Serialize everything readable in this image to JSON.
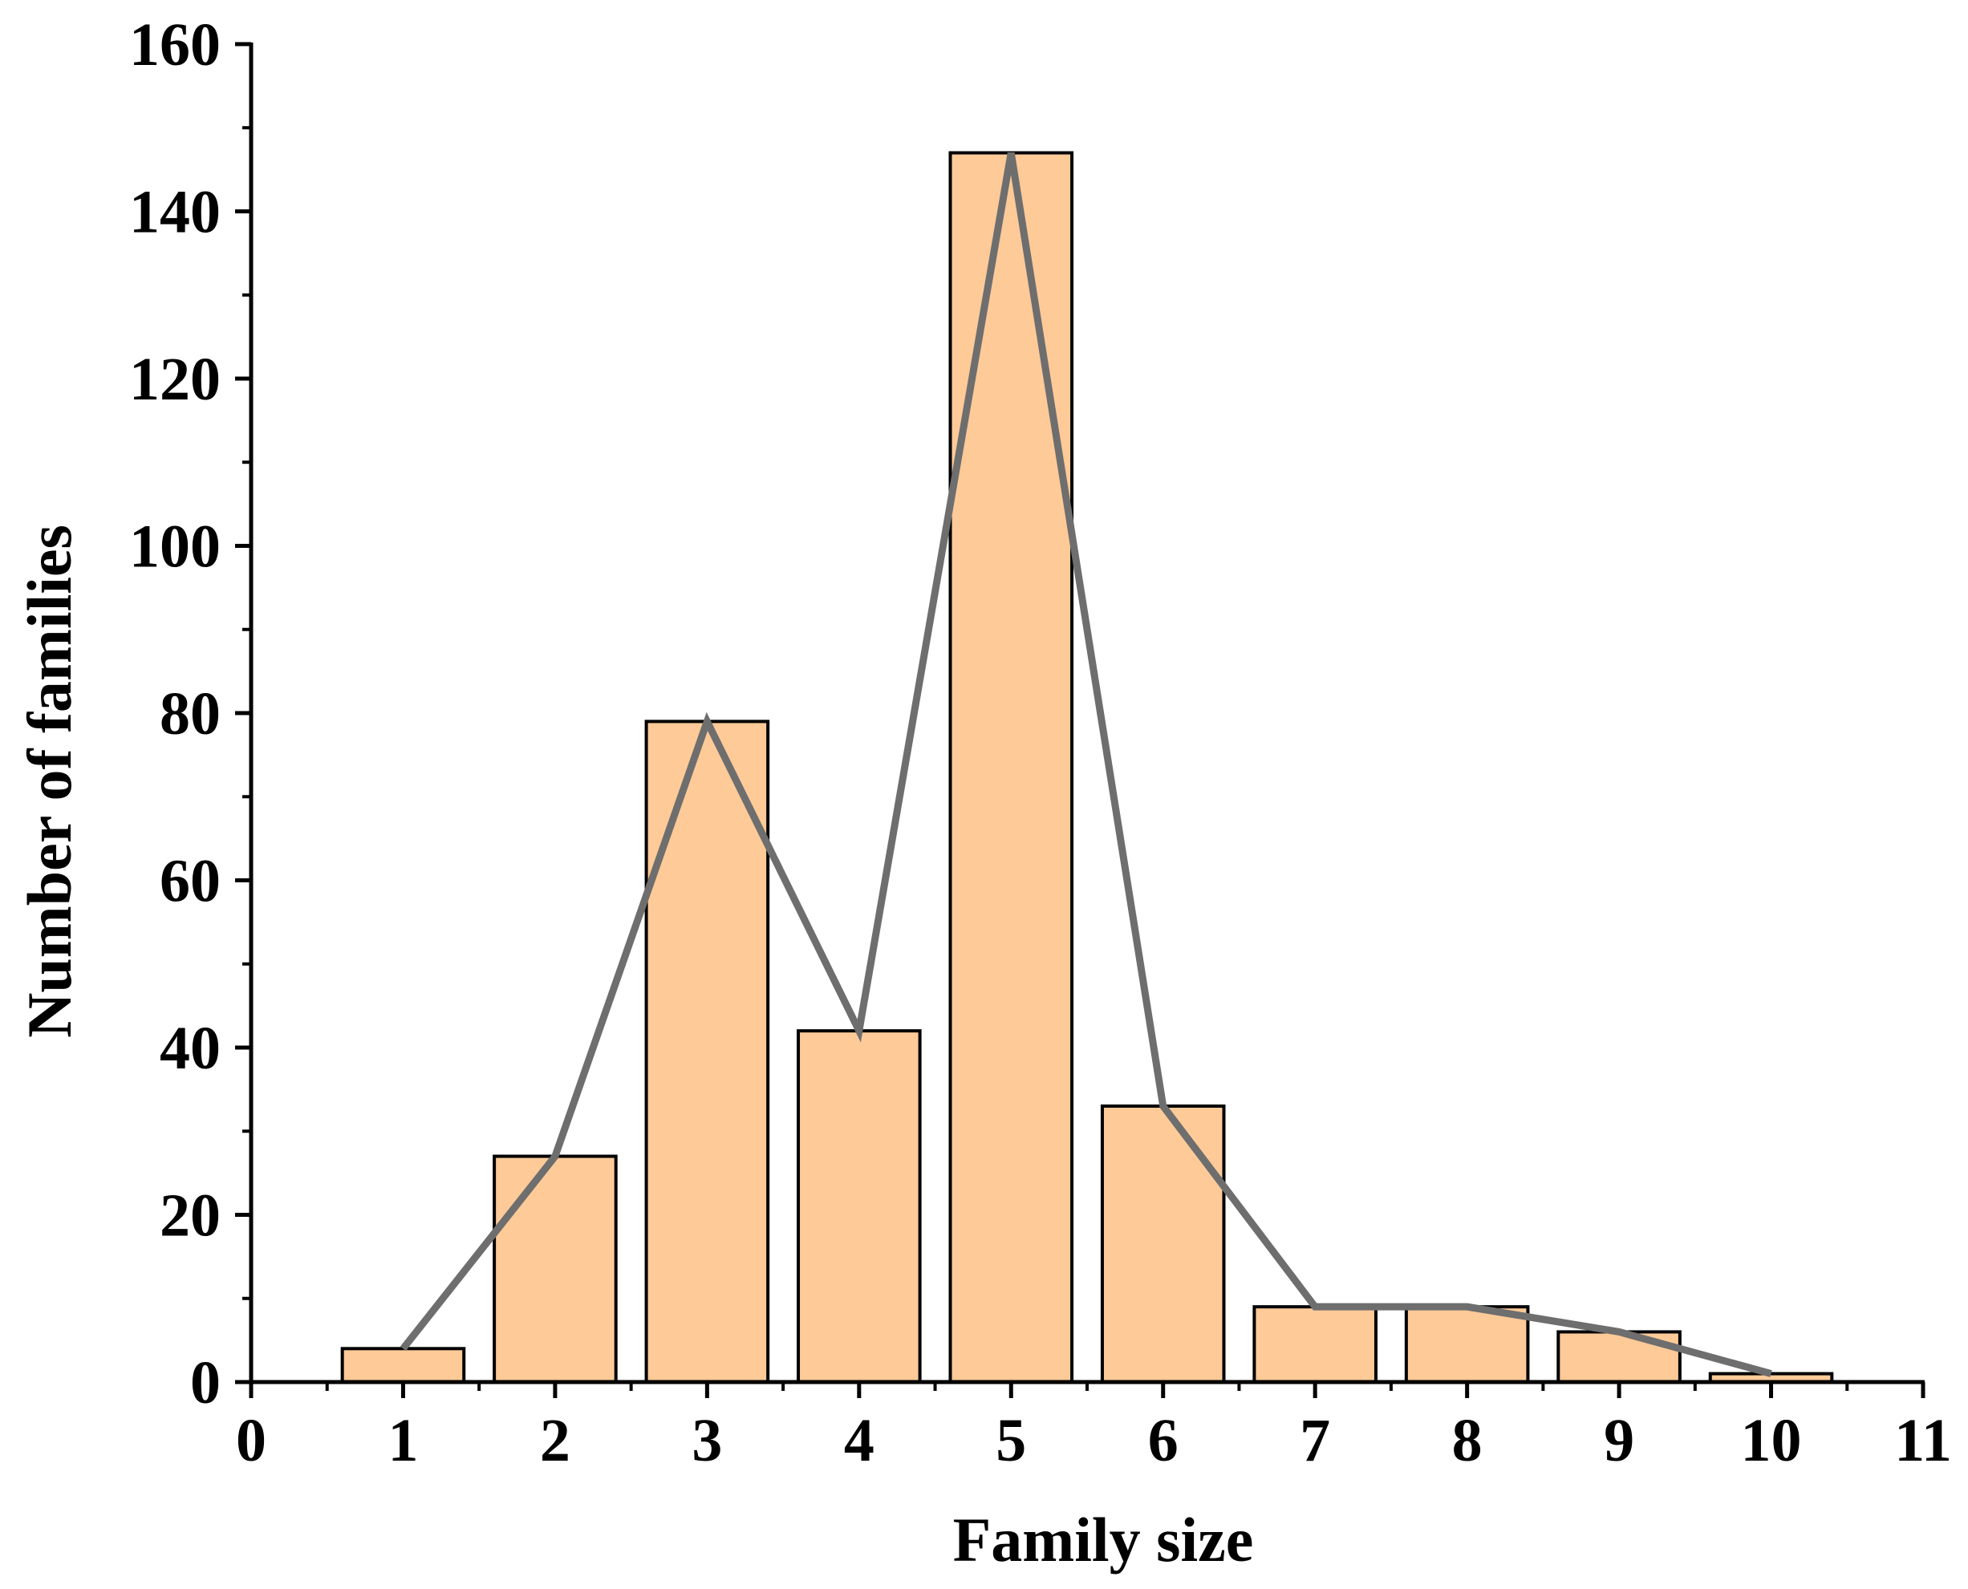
{
  "chart_data": {
    "type": "bar",
    "title": "",
    "xlabel": "Family size",
    "ylabel": "Number of families",
    "x": [
      1,
      2,
      3,
      4,
      5,
      6,
      7,
      8,
      9,
      10
    ],
    "values": [
      4,
      27,
      79,
      42,
      147,
      33,
      9,
      9,
      6,
      1
    ],
    "series": [
      {
        "name": "bars",
        "kind": "bar",
        "values": [
          4,
          27,
          79,
          42,
          147,
          33,
          9,
          9,
          6,
          1
        ]
      },
      {
        "name": "line",
        "kind": "line",
        "values": [
          4,
          27,
          79,
          42,
          147,
          33,
          9,
          9,
          6,
          1
        ]
      }
    ],
    "xlim": [
      0,
      11
    ],
    "ylim": [
      0,
      160
    ],
    "x_ticks": [
      "0",
      "1",
      "2",
      "3",
      "4",
      "5",
      "6",
      "7",
      "8",
      "9",
      "10",
      "11"
    ],
    "y_ticks": [
      "0",
      "20",
      "40",
      "60",
      "80",
      "100",
      "120",
      "140",
      "160"
    ],
    "grid": false,
    "colors": {
      "bar_fill": "#FECA98",
      "bar_stroke": "#000000",
      "line": "#6E6E6E",
      "axis": "#000000"
    }
  }
}
